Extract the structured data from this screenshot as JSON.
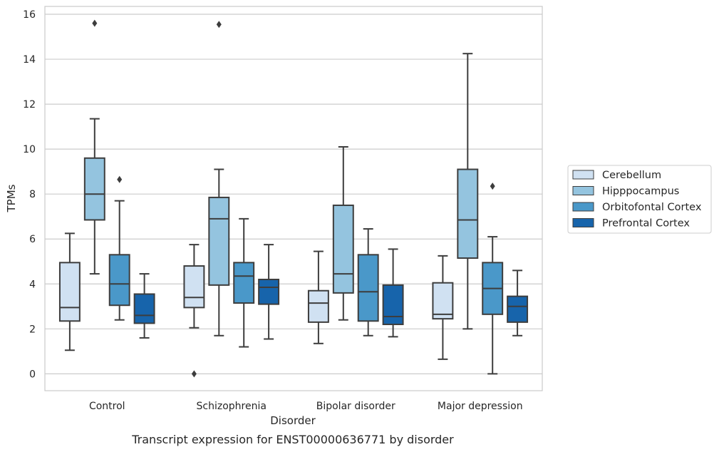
{
  "chart_data": {
    "type": "box",
    "caption": "Transcript expression for ENST00000636771 by disorder",
    "xlabel": "Disorder",
    "ylabel": "TPMs",
    "ylim": [
      -0.75,
      16.35
    ],
    "yticks": [
      0,
      2,
      4,
      6,
      8,
      10,
      12,
      14,
      16
    ],
    "grid": "horizontal",
    "legend_position": "right",
    "categories": [
      "Control",
      "Schizophrenia",
      "Bipolar disorder",
      "Major depression"
    ],
    "series": [
      {
        "name": "Cerebellum",
        "color": "#d0e1f2",
        "boxes": [
          {
            "whisker_low": 1.05,
            "q1": 2.35,
            "median": 2.95,
            "q3": 4.95,
            "whisker_high": 6.25,
            "outliers": []
          },
          {
            "whisker_low": 2.05,
            "q1": 2.95,
            "median": 3.4,
            "q3": 4.8,
            "whisker_high": 5.75,
            "outliers": [
              0.0
            ]
          },
          {
            "whisker_low": 1.35,
            "q1": 2.3,
            "median": 3.15,
            "q3": 3.7,
            "whisker_high": 5.45,
            "outliers": []
          },
          {
            "whisker_low": 0.65,
            "q1": 2.45,
            "median": 2.65,
            "q3": 4.05,
            "whisker_high": 5.25,
            "outliers": []
          }
        ]
      },
      {
        "name": "Hipppocampus",
        "color": "#94c4df",
        "boxes": [
          {
            "whisker_low": 4.45,
            "q1": 6.85,
            "median": 8.0,
            "q3": 9.6,
            "whisker_high": 11.35,
            "outliers": [
              15.6
            ]
          },
          {
            "whisker_low": 1.7,
            "q1": 3.95,
            "median": 6.9,
            "q3": 7.85,
            "whisker_high": 9.1,
            "outliers": [
              15.55
            ]
          },
          {
            "whisker_low": 2.4,
            "q1": 3.6,
            "median": 4.45,
            "q3": 7.5,
            "whisker_high": 10.1,
            "outliers": []
          },
          {
            "whisker_low": 2.0,
            "q1": 5.15,
            "median": 6.85,
            "q3": 9.1,
            "whisker_high": 14.25,
            "outliers": []
          }
        ]
      },
      {
        "name": "Orbitofontal Cortex",
        "color": "#4a98c9",
        "boxes": [
          {
            "whisker_low": 2.4,
            "q1": 3.05,
            "median": 4.0,
            "q3": 5.3,
            "whisker_high": 7.7,
            "outliers": [
              8.65
            ]
          },
          {
            "whisker_low": 1.2,
            "q1": 3.15,
            "median": 4.35,
            "q3": 4.95,
            "whisker_high": 6.9,
            "outliers": []
          },
          {
            "whisker_low": 1.7,
            "q1": 2.35,
            "median": 3.65,
            "q3": 5.3,
            "whisker_high": 6.45,
            "outliers": []
          },
          {
            "whisker_low": 0.0,
            "q1": 2.65,
            "median": 3.8,
            "q3": 4.95,
            "whisker_high": 6.1,
            "outliers": [
              8.35
            ]
          }
        ]
      },
      {
        "name": "Prefrontal Cortex",
        "color": "#1764ab",
        "boxes": [
          {
            "whisker_low": 1.6,
            "q1": 2.25,
            "median": 2.6,
            "q3": 3.55,
            "whisker_high": 4.45,
            "outliers": []
          },
          {
            "whisker_low": 1.55,
            "q1": 3.1,
            "median": 3.85,
            "q3": 4.2,
            "whisker_high": 5.75,
            "outliers": []
          },
          {
            "whisker_low": 1.65,
            "q1": 2.2,
            "median": 2.55,
            "q3": 3.95,
            "whisker_high": 5.55,
            "outliers": []
          },
          {
            "whisker_low": 1.7,
            "q1": 2.3,
            "median": 3.0,
            "q3": 3.45,
            "whisker_high": 4.6,
            "outliers": []
          }
        ]
      }
    ]
  }
}
